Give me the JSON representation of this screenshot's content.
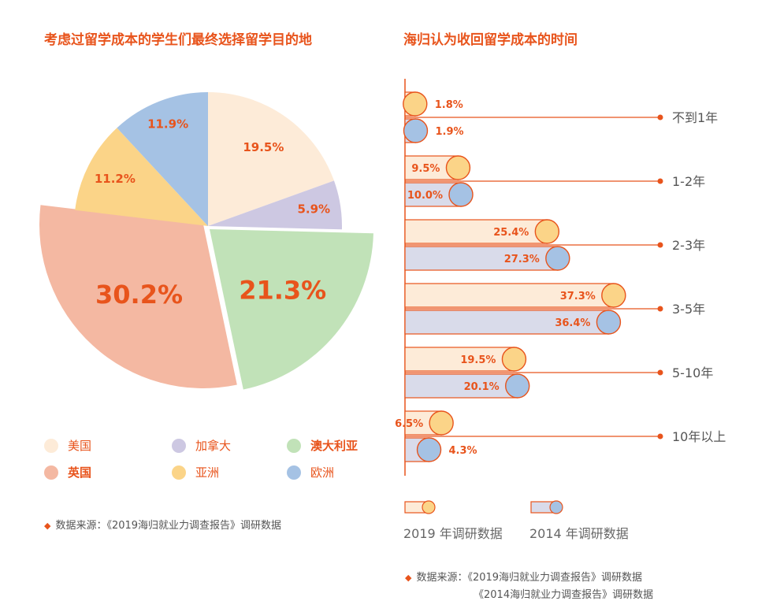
{
  "left_title": "考虑过留学成本的学生们最终选择留学目的地",
  "right_title": "海归认为收回留学成本的时间",
  "colors": {
    "accent": "#e8541c",
    "beige": "#fdebd8",
    "lavender": "#cdc8e2",
    "green": "#c1e2b8",
    "salmon": "#f4b8a2",
    "yellow": "#fbd488",
    "blue": "#a5c2e4",
    "bar2019_fill": "#fdebd8",
    "bar2014_fill": "#d9dbea",
    "circle2019": "#fbd488",
    "circle2014": "#a5c2e4"
  },
  "chart_data": [
    {
      "type": "pie",
      "title": "考虑过留学成本的学生们最终选择留学目的地",
      "slices": [
        {
          "label": "美国",
          "value": 19.5,
          "display": "19.5%",
          "color": "#fdebd8"
        },
        {
          "label": "加拿大",
          "value": 5.9,
          "display": "5.9%",
          "color": "#cdc8e2"
        },
        {
          "label": "澳大利亚",
          "value": 21.3,
          "display": "21.3%",
          "color": "#c1e2b8"
        },
        {
          "label": "英国",
          "value": 30.2,
          "display": "30.2%",
          "color": "#f4b8a2"
        },
        {
          "label": "亚洲",
          "value": 11.2,
          "display": "11.2%",
          "color": "#fbd488"
        },
        {
          "label": "欧洲",
          "value": 11.9,
          "display": "11.9%",
          "color": "#a5c2e4"
        }
      ],
      "legend": [
        {
          "label": "美国",
          "color": "#fdebd8",
          "bold": false
        },
        {
          "label": "加拿大",
          "color": "#cdc8e2",
          "bold": false
        },
        {
          "label": "澳大利亚",
          "color": "#c1e2b8",
          "bold": true
        },
        {
          "label": "英国",
          "color": "#f4b8a2",
          "bold": true
        },
        {
          "label": "亚洲",
          "color": "#fbd488",
          "bold": false
        },
        {
          "label": "欧洲",
          "color": "#a5c2e4",
          "bold": false
        }
      ],
      "legend_placement": "bottom"
    },
    {
      "type": "bar",
      "orientation": "horizontal",
      "title": "海归认为收回留学成本的时间",
      "categories": [
        "不到1年",
        "1-2年",
        "2-3年",
        "3-5年",
        "5-10年",
        "10年以上"
      ],
      "series": [
        {
          "name": "2019 年调研数据",
          "values": [
            1.8,
            9.5,
            25.4,
            37.3,
            19.5,
            6.5
          ],
          "labels": [
            "1.8%",
            "9.5%",
            "25.4%",
            "37.3%",
            "19.5%",
            "6.5%"
          ]
        },
        {
          "name": "2014 年调研数据",
          "values": [
            1.9,
            10.0,
            27.3,
            36.4,
            20.1,
            4.3
          ],
          "labels": [
            "1.9%",
            "10.0%",
            "27.3%",
            "36.4%",
            "20.1%",
            "4.3%"
          ]
        }
      ],
      "legend_placement": "bottom"
    }
  ],
  "left_source": "数据来源：《2019海归就业力调查报告》调研数据",
  "right_source_1": "数据来源：《2019海归就业力调查报告》调研数据",
  "right_source_2": "《2014海归就业力调查报告》调研数据",
  "bar_legend": {
    "label_2019": "2019 年调研数据",
    "label_2014": "2014 年调研数据"
  }
}
